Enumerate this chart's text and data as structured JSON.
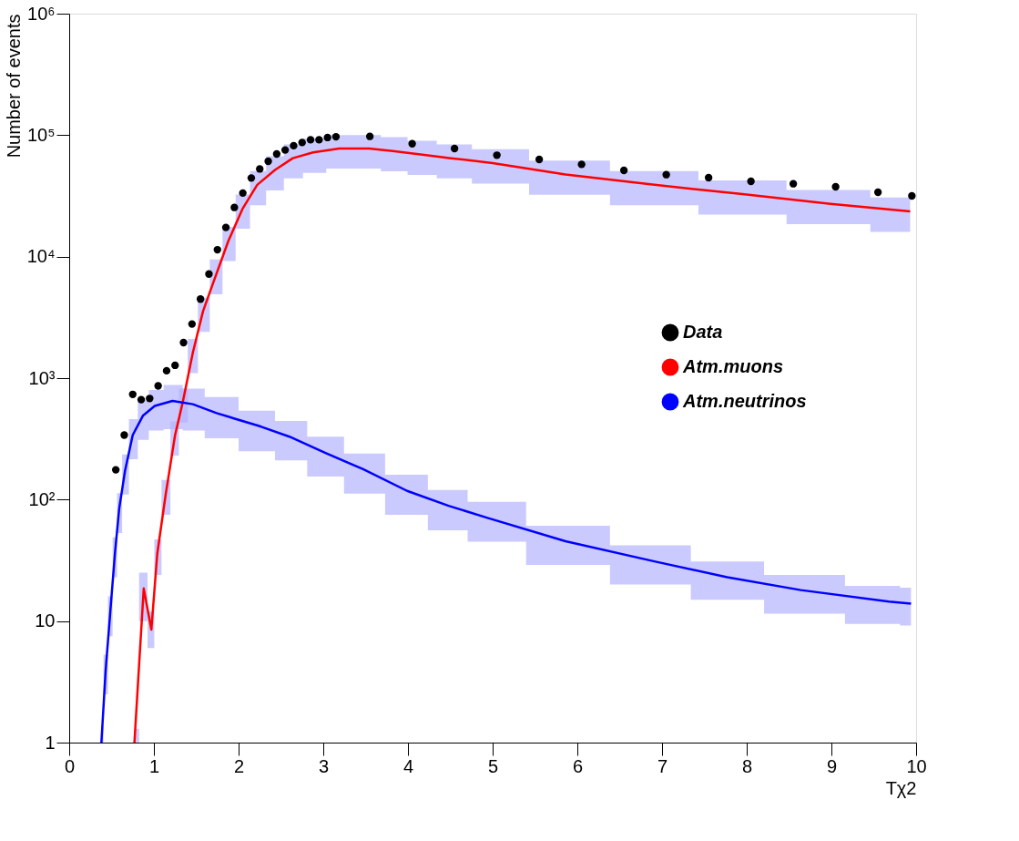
{
  "chart_data": {
    "type": "line",
    "xlabel": "Tχ2",
    "ylabel": "Number of events",
    "xlim": [
      0,
      10
    ],
    "xticks": [
      0,
      1,
      2,
      3,
      4,
      5,
      6,
      7,
      8,
      9,
      10
    ],
    "ylim": [
      1,
      1000000
    ],
    "yticks": [
      1,
      10,
      {
        "value": 100,
        "label": "10²"
      },
      {
        "value": 1000,
        "label": "10³"
      },
      {
        "value": 10000,
        "label": "10⁴"
      },
      {
        "value": 100000,
        "label": "10⁵"
      },
      {
        "value": 1000000,
        "label": "10⁶"
      }
    ],
    "log": "y",
    "grid": false,
    "legend": "right",
    "series": [
      {
        "name": "Data",
        "type": "scatter",
        "marker": "circle",
        "color": "#000000",
        "x": [
          0.55,
          0.65,
          0.75,
          0.85,
          0.95,
          1.05,
          1.15,
          1.25,
          1.35,
          1.45,
          1.55,
          1.65,
          1.75,
          1.85,
          1.95,
          2.05,
          2.15,
          2.25,
          2.35,
          2.45,
          2.55,
          2.65,
          2.75,
          2.85,
          2.95,
          3.05,
          3.15,
          3.55,
          4.05,
          4.55,
          5.05,
          5.55,
          6.05,
          6.55,
          7.05,
          7.55,
          8.05,
          8.55,
          9.05,
          9.55,
          9.95
        ],
        "values": [
          176,
          340,
          735,
          665,
          680,
          863,
          1150,
          1275,
          1960,
          2790,
          4470,
          7190,
          11400,
          17400,
          25400,
          33400,
          44400,
          52700,
          61000,
          70000,
          75500,
          81900,
          87000,
          91600,
          91600,
          95600,
          97000,
          97700,
          85000,
          77600,
          68400,
          63100,
          57500,
          51300,
          47300,
          44700,
          41700,
          39800,
          37600,
          33900,
          31600
        ]
      },
      {
        "name": "Atm.muons",
        "marker": "none",
        "color": "#ff0000",
        "x": [
          0.77,
          0.88,
          0.97,
          1.04,
          1.14,
          1.25,
          1.34,
          1.46,
          1.58,
          1.74,
          1.88,
          2.05,
          2.22,
          2.43,
          2.64,
          2.88,
          3.19,
          3.54,
          3.82,
          4.17,
          4.51,
          5.0,
          5.86,
          6.91,
          7.95,
          8.99,
          9.93
        ],
        "values": [
          1,
          18.6,
          8.5,
          36,
          111,
          340,
          630,
          1620,
          3550,
          7270,
          13500,
          25000,
          39000,
          51700,
          64600,
          72100,
          77600,
          77600,
          74100,
          69200,
          64600,
          58900,
          47500,
          39000,
          32700,
          27200,
          23600
        ],
        "lower": [
          1,
          10,
          6,
          24,
          75,
          230,
          430,
          1100,
          2400,
          4900,
          9200,
          17000,
          26500,
          35000,
          44000,
          49000,
          53000,
          53000,
          50400,
          47000,
          44000,
          40000,
          32300,
          26500,
          22200,
          18500,
          16000
        ],
        "upper": [
          1.3,
          25,
          12,
          47,
          145,
          440,
          820,
          2100,
          4600,
          9500,
          17500,
          32500,
          50700,
          67000,
          84000,
          94000,
          100000,
          100000,
          96300,
          90000,
          84000,
          76600,
          61800,
          50700,
          42500,
          35400,
          30700
        ]
      },
      {
        "name": "Atm.neutrinos",
        "marker": "none",
        "color": "#0000ff",
        "x": [
          0.38,
          0.43,
          0.485,
          0.54,
          0.59,
          0.66,
          0.75,
          0.87,
          1.01,
          1.22,
          1.46,
          1.74,
          2.26,
          2.6,
          3.02,
          3.47,
          3.99,
          4.48,
          4.93,
          5.86,
          6.91,
          7.77,
          8.64,
          9.68,
          9.94
        ],
        "values": [
          1,
          3.9,
          11.9,
          36,
          84,
          174,
          340,
          490,
          590,
          650,
          610,
          515,
          400,
          330,
          243,
          178,
          118,
          89,
          71,
          45.5,
          31,
          23,
          18,
          14.5,
          13.9
        ],
        "lower": [
          1,
          2.5,
          7.5,
          23,
          53,
          110,
          215,
          310,
          370,
          380,
          370,
          320,
          250,
          210,
          155,
          112,
          75,
          56,
          45,
          29,
          20,
          15,
          11.5,
          9.5,
          9.2
        ],
        "upper": [
          1.4,
          5.3,
          16,
          49,
          113,
          235,
          460,
          660,
          800,
          880,
          820,
          700,
          540,
          445,
          330,
          240,
          160,
          120,
          96,
          61,
          42,
          31,
          24,
          19.5,
          18.8
        ]
      }
    ]
  }
}
